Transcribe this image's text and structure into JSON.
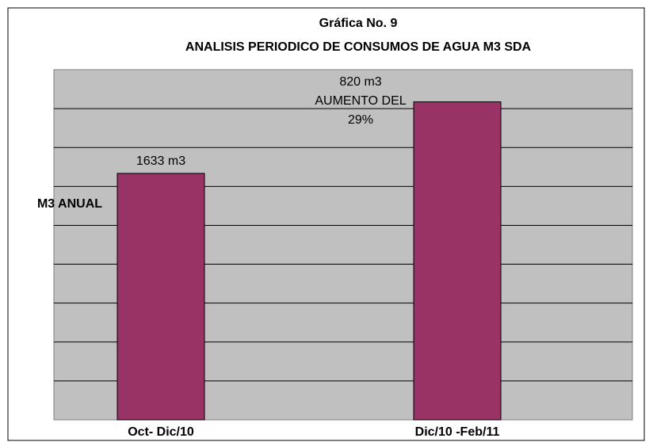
{
  "chart_data": {
    "type": "bar",
    "title": "Gráfica No. 9",
    "subtitle": "ANALISIS PERIODICO DE CONSUMOS DE AGUA M3 SDA",
    "y_label": "M3 ANUAL",
    "categories": [
      "Oct- Dic/10",
      "Dic/10 -Feb/11"
    ],
    "values": [
      1633,
      2107
    ],
    "value_labels": [
      "1633 m3",
      null
    ],
    "annotations": [
      "820 m3",
      "AUMENTO DEL",
      "29%"
    ],
    "color": "#993366",
    "ylim": [
      0,
      2320
    ],
    "grid": true
  }
}
